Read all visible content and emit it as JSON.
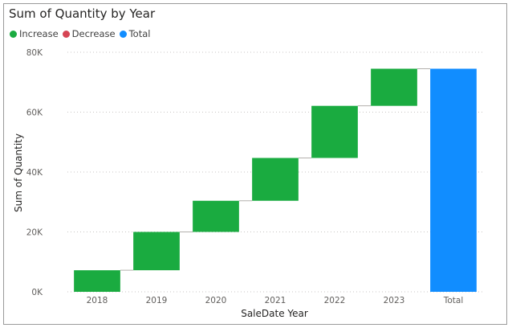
{
  "chart_data": {
    "type": "waterfall",
    "title": "Sum of Quantity by Year",
    "xlabel": "SaleDate Year",
    "ylabel": "Sum of Quantity",
    "categories": [
      "2018",
      "2019",
      "2020",
      "2021",
      "2022",
      "2023",
      "Total"
    ],
    "changes": [
      7200,
      12800,
      10400,
      14300,
      17400,
      12400
    ],
    "total": 74500,
    "y_ticks": [
      0,
      20000,
      40000,
      60000,
      80000
    ],
    "y_tick_labels": [
      "0K",
      "20K",
      "40K",
      "60K",
      "80K"
    ],
    "ylim": [
      0,
      80000
    ],
    "grid": true,
    "legend": {
      "placement": "top-left",
      "items": [
        {
          "label": "Increase",
          "color": "#1aab40"
        },
        {
          "label": "Decrease",
          "color": "#d64554"
        },
        {
          "label": "Total",
          "color": "#118dff"
        }
      ]
    },
    "colors": {
      "increase": "#1aab40",
      "decrease": "#d64554",
      "total": "#118dff"
    }
  }
}
